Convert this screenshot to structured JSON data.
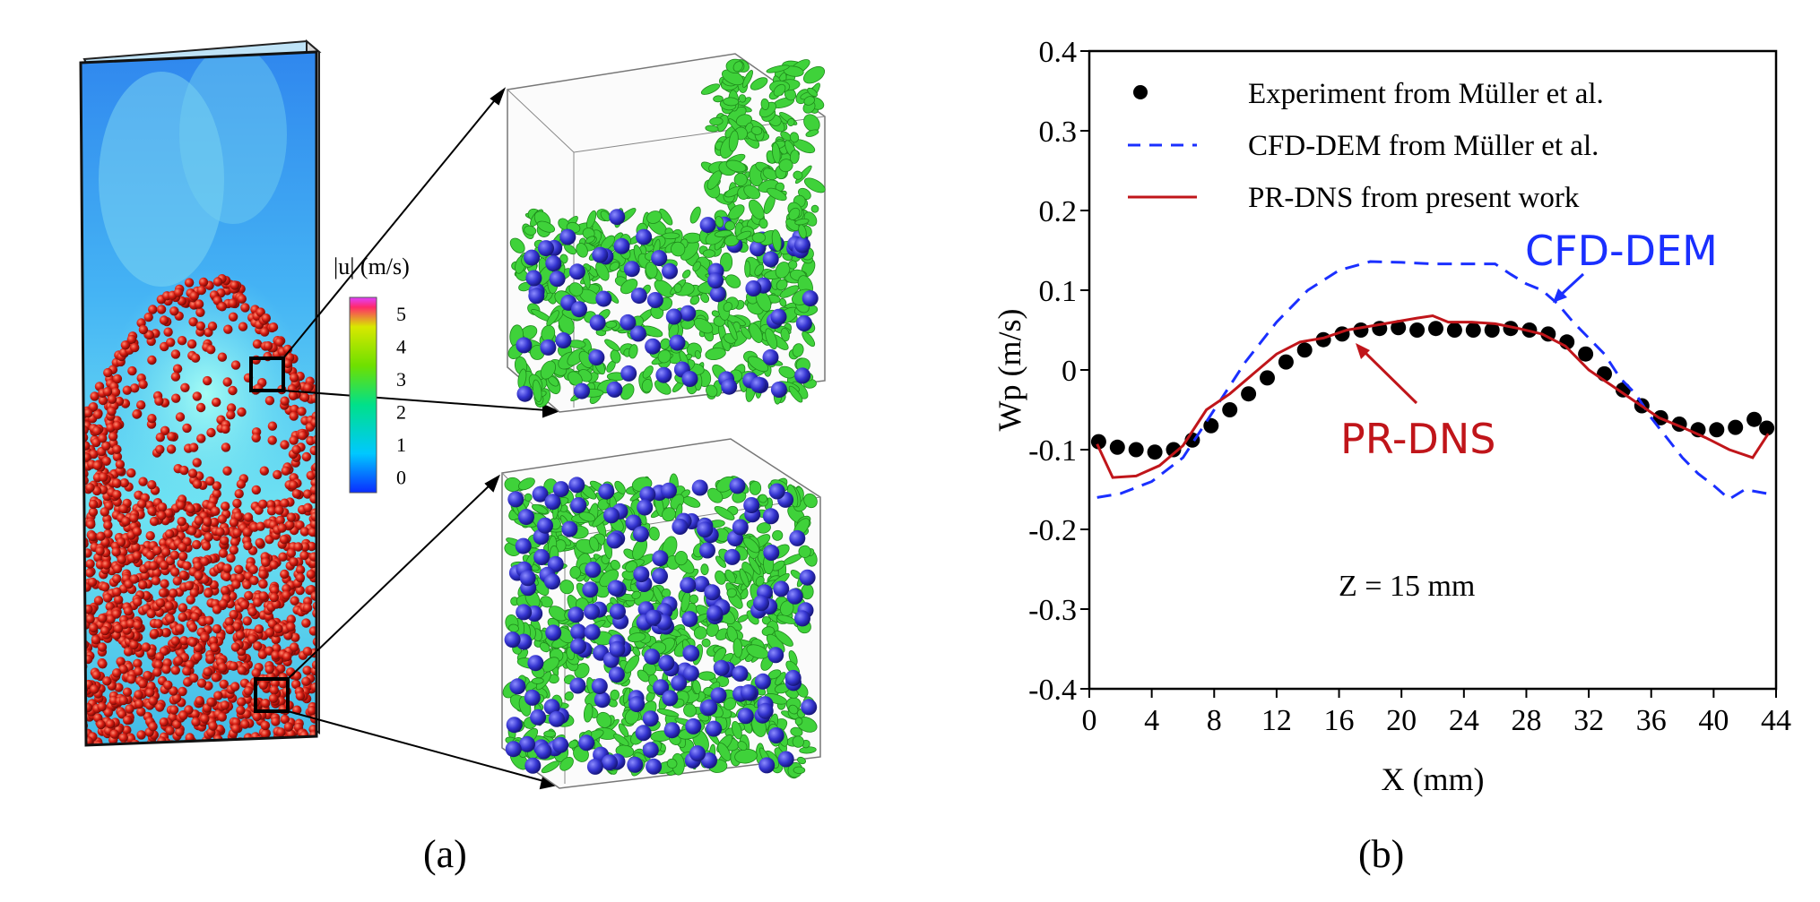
{
  "panel_a": {
    "caption": "(a)",
    "colorbar": {
      "title": "|u| (m/s)",
      "ticks": [
        "5",
        "4",
        "3",
        "2",
        "1",
        "0"
      ],
      "colors": [
        "#0a2cff",
        "#00c8ff",
        "#00e08a",
        "#6ee000",
        "#d8e800",
        "#ff2a6a"
      ]
    },
    "colors": {
      "fluid_top": "#2a8cf0",
      "fluid_jet": "#7ff0ff",
      "particle": "#c81a12",
      "particle_zoom": "#3a3ad8",
      "vortex": "#3fd23a"
    }
  },
  "panel_b": {
    "caption": "(b)",
    "chart_data": {
      "type": "line",
      "xlabel": "X (mm)",
      "ylabel": "Wp (m/s)",
      "xlim": [
        0,
        44
      ],
      "ylim": [
        -0.4,
        0.4
      ],
      "xticks": [
        0,
        4,
        8,
        12,
        16,
        20,
        24,
        28,
        32,
        36,
        40,
        44
      ],
      "yticks": [
        0.4,
        0.3,
        0.2,
        0.1,
        0,
        -0.1,
        -0.2,
        -0.3,
        -0.4
      ],
      "ytick_labels": [
        "0.4",
        "0.3",
        "0.2",
        "0.1",
        "0",
        "-0.1",
        "-0.2",
        "-0.3",
        "-0.4"
      ],
      "grid": false,
      "legend_position": "top-right",
      "annotations": [
        "CFD-DEM",
        "PR-DNS",
        "Z = 15 mm"
      ],
      "series": [
        {
          "name": "Experiment from Müller et al.",
          "style": "scatter",
          "color": "#000000",
          "x": [
            0.6,
            1.8,
            3.0,
            4.2,
            5.4,
            6.6,
            7.8,
            9.0,
            10.2,
            11.4,
            12.6,
            13.8,
            15.0,
            16.2,
            17.4,
            18.6,
            19.8,
            21.0,
            22.2,
            23.4,
            24.6,
            25.8,
            27.0,
            28.2,
            29.4,
            30.6,
            31.8,
            33.0,
            34.2,
            35.4,
            36.6,
            37.8,
            39.0,
            40.2,
            41.4,
            42.6,
            43.4
          ],
          "y": [
            -0.09,
            -0.097,
            -0.1,
            -0.103,
            -0.1,
            -0.088,
            -0.07,
            -0.05,
            -0.03,
            -0.01,
            0.01,
            0.025,
            0.038,
            0.045,
            0.05,
            0.052,
            0.053,
            0.05,
            0.052,
            0.05,
            0.05,
            0.05,
            0.052,
            0.05,
            0.045,
            0.035,
            0.02,
            -0.005,
            -0.025,
            -0.045,
            -0.06,
            -0.068,
            -0.075,
            -0.075,
            -0.072,
            -0.062,
            -0.073
          ]
        },
        {
          "name": "CFD-DEM from Müller et al.",
          "style": "dashed",
          "color": "#1a2fff",
          "x": [
            0.5,
            2,
            4,
            6,
            8,
            10,
            12,
            14,
            16,
            18,
            20,
            22,
            24,
            26,
            27,
            28,
            29,
            30,
            31,
            32,
            33,
            34,
            35,
            36,
            37,
            38,
            39,
            40,
            41,
            42,
            43.4
          ],
          "y": [
            -0.16,
            -0.155,
            -0.14,
            -0.11,
            -0.05,
            0.01,
            0.06,
            0.1,
            0.125,
            0.136,
            0.135,
            0.133,
            0.133,
            0.133,
            0.12,
            0.108,
            0.1,
            0.083,
            0.06,
            0.04,
            0.02,
            -0.01,
            -0.03,
            -0.06,
            -0.085,
            -0.11,
            -0.13,
            -0.145,
            -0.162,
            -0.15,
            -0.155
          ]
        },
        {
          "name": "PR-DNS from present work",
          "style": "solid",
          "color": "#c0151a",
          "x": [
            0.5,
            1.5,
            3,
            4.5,
            6,
            7.5,
            9,
            10.5,
            12,
            13.5,
            15,
            16.5,
            18,
            19.5,
            21,
            22,
            23,
            24.5,
            26,
            27.5,
            29,
            30.5,
            32,
            33.5,
            35,
            36.5,
            38,
            39.5,
            41,
            42.5,
            43.5
          ],
          "y": [
            -0.093,
            -0.135,
            -0.133,
            -0.12,
            -0.095,
            -0.05,
            -0.03,
            -0.005,
            0.02,
            0.035,
            0.04,
            0.05,
            0.055,
            0.06,
            0.065,
            0.068,
            0.06,
            0.06,
            0.058,
            0.052,
            0.045,
            0.03,
            0.0,
            -0.02,
            -0.04,
            -0.06,
            -0.072,
            -0.085,
            -0.1,
            -0.11,
            -0.08
          ]
        }
      ]
    }
  }
}
